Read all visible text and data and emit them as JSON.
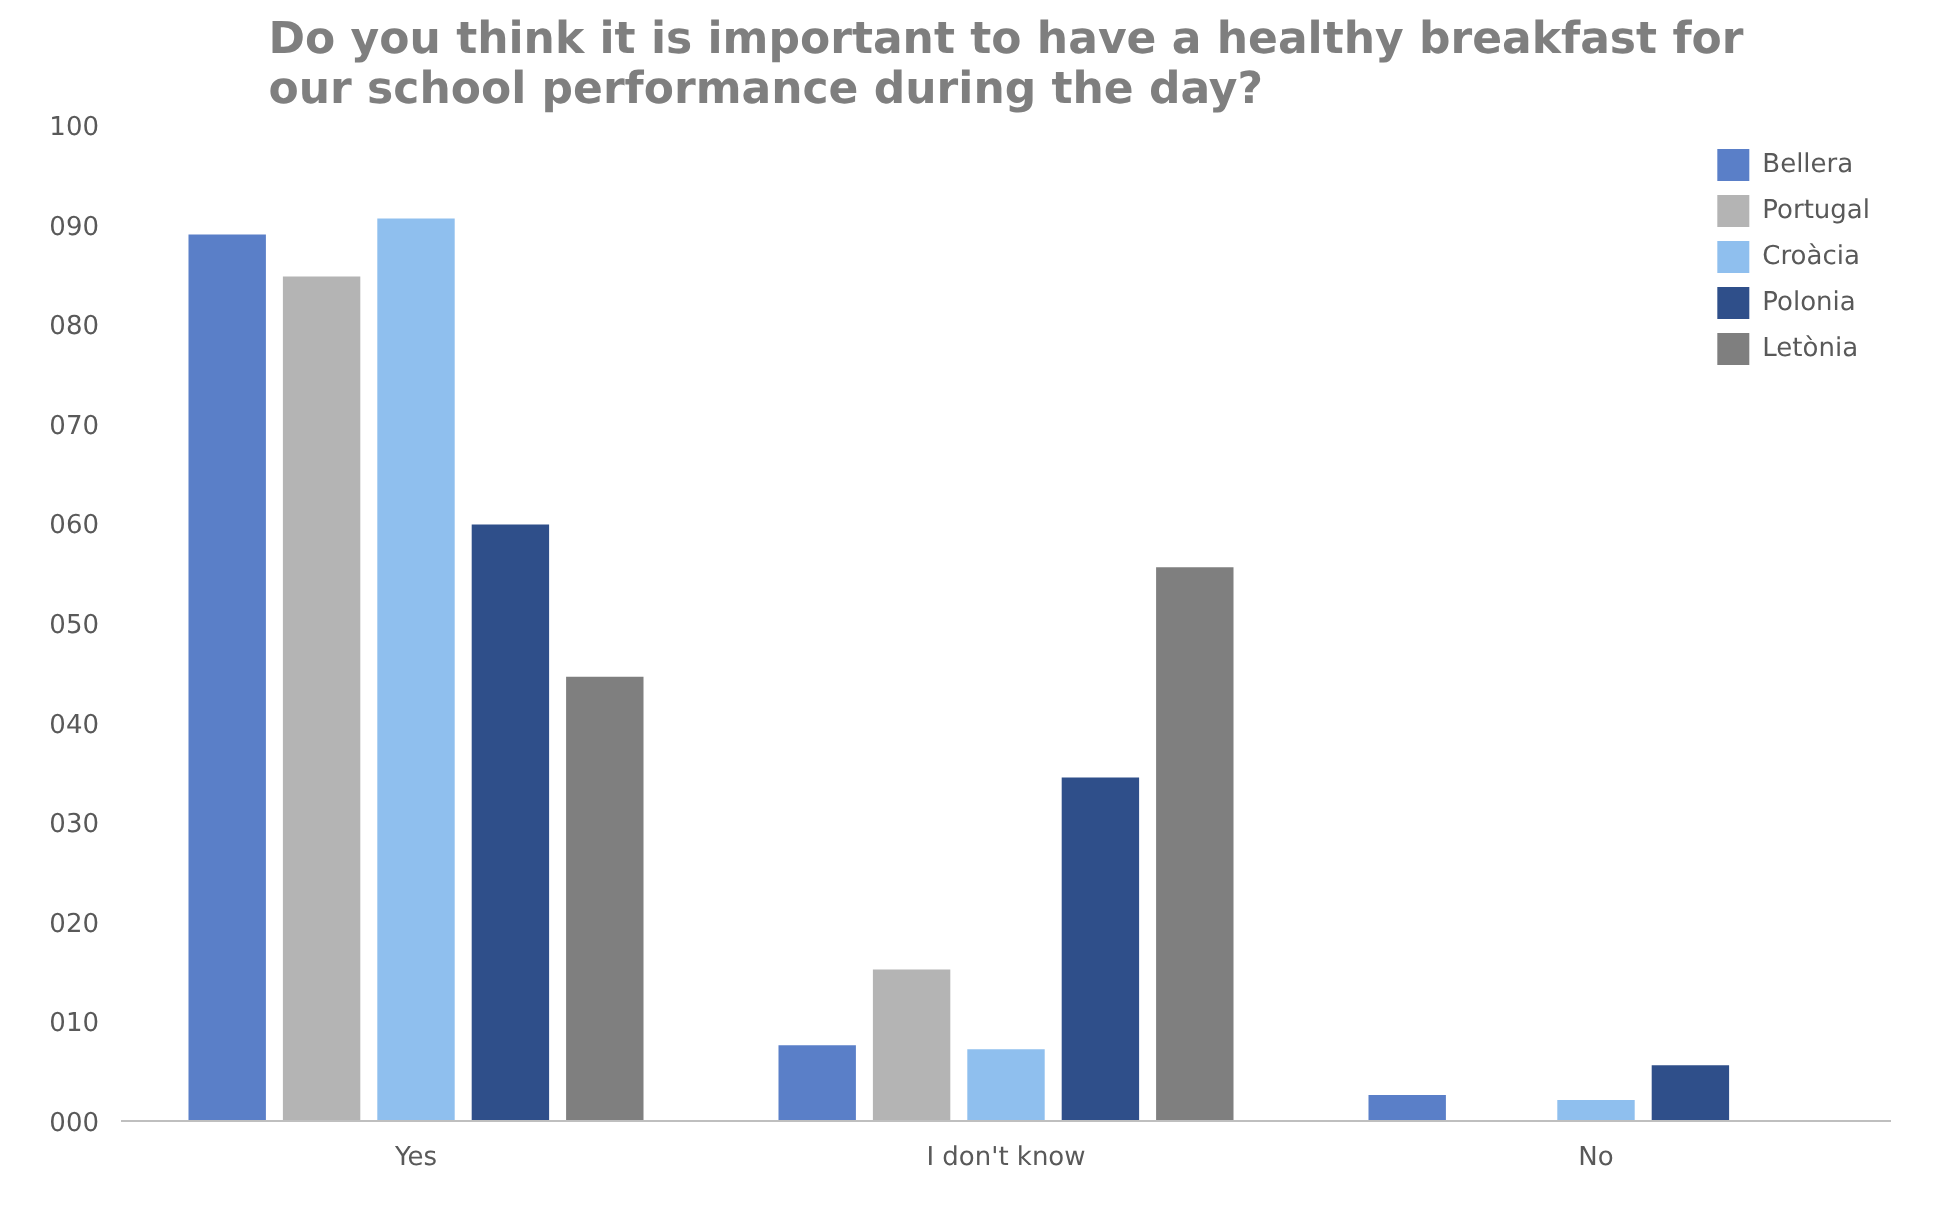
{
  "chart_data": {
    "type": "bar",
    "title": "Do you think it is important to have a healthy breakfast for our school performance during the day?",
    "categories": [
      "Yes",
      "I don't know",
      "No"
    ],
    "series": [
      {
        "name": "Bellera",
        "color": "#5a7fc8",
        "values": [
          89,
          7.6,
          2.6
        ]
      },
      {
        "name": "Portugal",
        "color": "#b4b4b4",
        "values": [
          84.8,
          15.2,
          0
        ]
      },
      {
        "name": "Croàcia",
        "color": "#8fbfee",
        "values": [
          90.6,
          7.2,
          2.1
        ]
      },
      {
        "name": "Polonia",
        "color": "#2f4f8a",
        "values": [
          59.9,
          34.5,
          5.6
        ]
      },
      {
        "name": "Letònia",
        "color": "#7f7f7f",
        "values": [
          44.6,
          55.6,
          0
        ]
      }
    ],
    "ylim": [
      0,
      100
    ],
    "yticks": [
      {
        "value": 0,
        "label": "000"
      },
      {
        "value": 10,
        "label": "010"
      },
      {
        "value": 20,
        "label": "020"
      },
      {
        "value": 30,
        "label": "030"
      },
      {
        "value": 40,
        "label": "040"
      },
      {
        "value": 50,
        "label": "050"
      },
      {
        "value": 60,
        "label": "060"
      },
      {
        "value": 70,
        "label": "070"
      },
      {
        "value": 80,
        "label": "080"
      },
      {
        "value": 90,
        "label": "090"
      },
      100
    ],
    "grid": false,
    "legend": "top right"
  }
}
